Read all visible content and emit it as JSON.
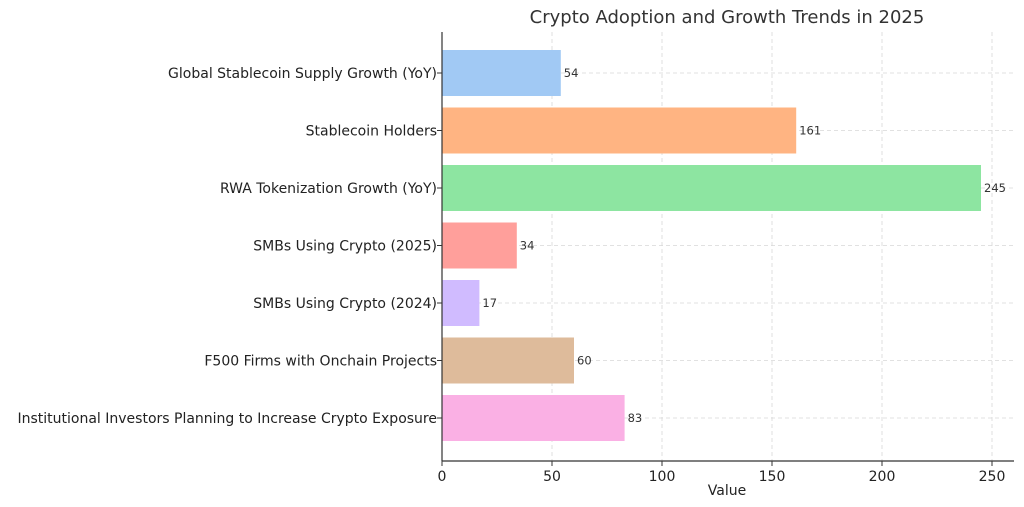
{
  "chart_data": {
    "type": "bar",
    "orientation": "horizontal",
    "title": "Crypto Adoption and Growth Trends in 2025",
    "xlabel": "Value",
    "ylabel": "",
    "categories": [
      "Global Stablecoin Supply Growth (YoY)",
      "Stablecoin Holders",
      "RWA Tokenization Growth (YoY)",
      "SMBs Using Crypto (2025)",
      "SMBs Using Crypto (2024)",
      "F500 Firms with Onchain Projects",
      "Institutional Investors Planning to Increase Crypto Exposure"
    ],
    "values": [
      54,
      161,
      245,
      34,
      17,
      60,
      83
    ],
    "colors": [
      "#a1c9f4",
      "#ffb482",
      "#8de5a1",
      "#ff9f9b",
      "#d0bbff",
      "#debb9b",
      "#fab0e4"
    ],
    "xlim": [
      0,
      260
    ],
    "xticks": [
      0,
      50,
      100,
      150,
      200,
      250
    ],
    "grid": true,
    "legend": "none"
  }
}
